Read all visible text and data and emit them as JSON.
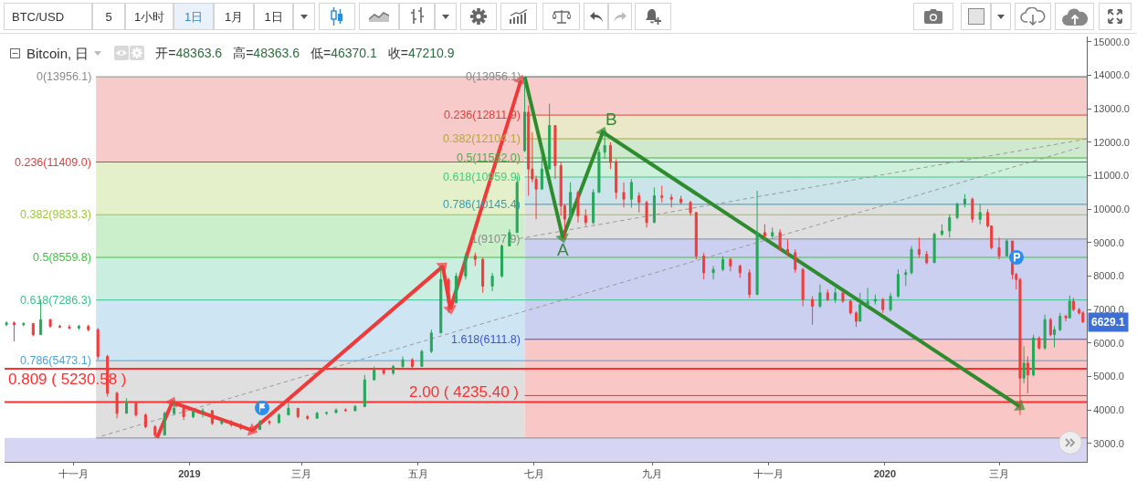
{
  "chart_data": {
    "type": "candlestick",
    "title": "Bitcoin, 日",
    "subtitle": "开=48363.6  高=48363.6  低=46370.1  收=47210.9",
    "x": [
      "2018-09-27",
      "2018-10-01",
      "2018-10-06",
      "2018-10-11",
      "2018-10-15",
      "2018-10-20",
      "2018-10-25",
      "2018-10-30",
      "2018-11-04",
      "2018-11-09",
      "2018-11-14",
      "2018-11-19",
      "2018-11-24",
      "2018-11-29",
      "2018-12-04",
      "2018-12-09",
      "2018-12-14",
      "2018-12-19",
      "2018-12-24",
      "2018-12-29",
      "2019-01-03",
      "2019-01-08",
      "2019-01-13",
      "2019-01-18",
      "2019-01-23",
      "2019-01-28",
      "2019-02-02",
      "2019-02-07",
      "2019-02-12",
      "2019-02-17",
      "2019-02-22",
      "2019-02-27",
      "2019-03-04",
      "2019-03-09",
      "2019-03-14",
      "2019-03-19",
      "2019-03-24",
      "2019-03-29",
      "2019-04-03",
      "2019-04-08",
      "2019-04-13",
      "2019-04-18",
      "2019-04-23",
      "2019-04-28",
      "2019-05-03",
      "2019-05-08",
      "2019-05-13",
      "2019-05-17",
      "2019-05-21",
      "2019-05-26",
      "2019-05-31",
      "2019-06-04",
      "2019-06-09",
      "2019-06-14",
      "2019-06-18",
      "2019-06-22",
      "2019-06-26",
      "2019-06-28",
      "2019-06-30",
      "2019-07-02",
      "2019-07-05",
      "2019-07-09",
      "2019-07-12",
      "2019-07-15",
      "2019-07-17",
      "2019-07-20",
      "2019-07-24",
      "2019-07-28",
      "2019-08-01",
      "2019-08-04",
      "2019-08-07",
      "2019-08-10",
      "2019-08-13",
      "2019-08-17",
      "2019-08-21",
      "2019-08-25",
      "2019-08-29",
      "2019-09-02",
      "2019-09-06",
      "2019-09-11",
      "2019-09-16",
      "2019-09-21",
      "2019-09-24",
      "2019-09-28",
      "2019-10-03",
      "2019-10-08",
      "2019-10-12",
      "2019-10-17",
      "2019-10-22",
      "2019-10-26",
      "2019-10-30",
      "2019-11-03",
      "2019-11-07",
      "2019-11-11",
      "2019-11-15",
      "2019-11-19",
      "2019-11-24",
      "2019-11-28",
      "2019-12-02",
      "2019-12-06",
      "2019-12-10",
      "2019-12-14",
      "2019-12-17",
      "2019-12-19",
      "2019-12-23",
      "2019-12-27",
      "2019-12-31",
      "2020-01-04",
      "2020-01-08",
      "2020-01-12",
      "2020-01-15",
      "2020-01-19",
      "2020-01-23",
      "2020-01-27",
      "2020-01-31",
      "2020-02-04",
      "2020-02-08",
      "2020-02-12",
      "2020-02-16",
      "2020-02-20",
      "2020-02-24",
      "2020-02-26",
      "2020-03-01",
      "2020-03-05",
      "2020-03-08",
      "2020-03-10",
      "2020-03-12",
      "2020-03-14",
      "2020-03-16",
      "2020-03-19",
      "2020-03-22",
      "2020-03-25",
      "2020-03-28",
      "2020-03-30",
      "2020-04-02",
      "2020-04-05",
      "2020-04-07",
      "2020-04-09",
      "2020-04-12",
      "2020-04-14"
    ],
    "ohlc": [
      [
        6550,
        6650,
        6500,
        6600
      ],
      [
        6600,
        6650,
        6050,
        6550
      ],
      [
        6550,
        6620,
        6500,
        6580
      ],
      [
        6580,
        6600,
        6200,
        6250
      ],
      [
        6250,
        7300,
        6250,
        6700
      ],
      [
        6700,
        6720,
        6450,
        6500
      ],
      [
        6500,
        6550,
        6450,
        6480
      ],
      [
        6480,
        6550,
        6400,
        6450
      ],
      [
        6450,
        6550,
        6400,
        6500
      ],
      [
        6500,
        6550,
        6350,
        6400
      ],
      [
        6400,
        6450,
        5500,
        5600
      ],
      [
        5600,
        5650,
        4400,
        4500
      ],
      [
        4500,
        4550,
        3750,
        3900
      ],
      [
        3900,
        4350,
        3900,
        4200
      ],
      [
        4200,
        4250,
        3800,
        3850
      ],
      [
        3850,
        3900,
        3450,
        3500
      ],
      [
        3500,
        3550,
        3165,
        3250
      ],
      [
        3250,
        3950,
        3250,
        3900
      ],
      [
        3900,
        4230,
        3850,
        4050
      ],
      [
        4050,
        4050,
        3700,
        3800
      ],
      [
        3800,
        4000,
        3750,
        3950
      ],
      [
        3950,
        4050,
        3780,
        3980
      ],
      [
        3980,
        4000,
        3550,
        3600
      ],
      [
        3600,
        3700,
        3550,
        3650
      ],
      [
        3650,
        3700,
        3500,
        3550
      ],
      [
        3550,
        3600,
        3400,
        3450
      ],
      [
        3450,
        3500,
        3390,
        3420
      ],
      [
        3420,
        3700,
        3400,
        3650
      ],
      [
        3650,
        3700,
        3550,
        3620
      ],
      [
        3620,
        3900,
        3600,
        3850
      ],
      [
        3850,
        4200,
        3850,
        4050
      ],
      [
        4050,
        4050,
        3750,
        3800
      ],
      [
        3800,
        3850,
        3700,
        3750
      ],
      [
        3750,
        3950,
        3750,
        3900
      ],
      [
        3900,
        3950,
        3850,
        3920
      ],
      [
        3920,
        4050,
        3900,
        4000
      ],
      [
        4000,
        4050,
        3950,
        3980
      ],
      [
        3980,
        4150,
        3950,
        4100
      ],
      [
        4100,
        5050,
        4100,
        4900
      ],
      [
        4900,
        5300,
        4900,
        5200
      ],
      [
        5200,
        5220,
        5050,
        5100
      ],
      [
        5100,
        5350,
        5050,
        5300
      ],
      [
        5300,
        5600,
        5250,
        5500
      ],
      [
        5500,
        5550,
        5200,
        5300
      ],
      [
        5300,
        5800,
        5300,
        5750
      ],
      [
        5750,
        6400,
        5700,
        6300
      ],
      [
        6300,
        8250,
        6300,
        7900
      ],
      [
        7900,
        7950,
        6900,
        7200
      ],
      [
        7200,
        8100,
        7200,
        8000
      ],
      [
        8000,
        8700,
        7900,
        8600
      ],
      [
        8600,
        8700,
        8300,
        8500
      ],
      [
        8500,
        8550,
        7500,
        7700
      ],
      [
        7700,
        8100,
        7550,
        8000
      ],
      [
        8000,
        8950,
        7950,
        8900
      ],
      [
        8900,
        9400,
        8900,
        9300
      ],
      [
        9300,
        11000,
        9300,
        10800
      ],
      [
        11750,
        13956.1,
        11700,
        12900
      ],
      [
        12900,
        13100,
        10400,
        11200
      ],
      [
        11200,
        12300,
        10800,
        10900
      ],
      [
        10900,
        11000,
        9700,
        10600
      ],
      [
        10600,
        11900,
        10600,
        11200
      ],
      [
        11200,
        13150,
        11200,
        12500
      ],
      [
        12500,
        12500,
        10900,
        11300
      ],
      [
        11300,
        11400,
        9800,
        10100
      ],
      [
        10100,
        10150,
        9107.9,
        9700
      ],
      [
        9700,
        10800,
        9700,
        10500
      ],
      [
        10500,
        10550,
        9600,
        9800
      ],
      [
        9800,
        10000,
        9500,
        9600
      ],
      [
        9600,
        10600,
        9550,
        10500
      ],
      [
        10500,
        11800,
        10500,
        11700
      ],
      [
        11700,
        12300,
        11500,
        11900
      ],
      [
        11900,
        12000,
        11200,
        11400
      ],
      [
        11400,
        11500,
        10300,
        10500
      ],
      [
        10500,
        10800,
        10050,
        10300
      ],
      [
        10300,
        10900,
        10050,
        10800
      ],
      [
        10400,
        10500,
        9900,
        10200
      ],
      [
        10200,
        10250,
        9450,
        9600
      ],
      [
        9600,
        10650,
        9600,
        10400
      ],
      [
        10400,
        10700,
        10200,
        10350
      ],
      [
        10350,
        10450,
        10050,
        10300
      ],
      [
        10300,
        10400,
        10150,
        10200
      ],
      [
        10200,
        10250,
        9800,
        9900
      ],
      [
        9900,
        9900,
        8500,
        8600
      ],
      [
        8600,
        8700,
        7900,
        8100
      ],
      [
        8100,
        8300,
        7900,
        8200
      ],
      [
        8200,
        8600,
        8150,
        8500
      ],
      [
        8500,
        8550,
        8150,
        8300
      ],
      [
        8300,
        8350,
        7950,
        8100
      ],
      [
        8100,
        8200,
        7350,
        7450
      ],
      [
        7450,
        10550,
        7450,
        9300
      ],
      [
        9300,
        9550,
        9050,
        9200
      ],
      [
        9200,
        9450,
        9100,
        9300
      ],
      [
        9300,
        9400,
        8750,
        8800
      ],
      [
        8800,
        9100,
        8600,
        8700
      ],
      [
        8700,
        8800,
        8100,
        8200
      ],
      [
        8200,
        8250,
        7100,
        7300
      ],
      [
        7300,
        7400,
        6550,
        7100
      ],
      [
        7100,
        7750,
        7050,
        7500
      ],
      [
        7500,
        7600,
        7250,
        7300
      ],
      [
        7300,
        7650,
        7200,
        7500
      ],
      [
        7500,
        7550,
        7200,
        7250
      ],
      [
        7250,
        7300,
        6850,
        6900
      ],
      [
        6900,
        6950,
        6480,
        6650
      ],
      [
        6650,
        7500,
        6650,
        7150
      ],
      [
        7150,
        7650,
        7100,
        7250
      ],
      [
        7250,
        7450,
        7150,
        7300
      ],
      [
        7300,
        7350,
        6900,
        7000
      ],
      [
        7000,
        7500,
        6950,
        7400
      ],
      [
        7400,
        8200,
        7350,
        8050
      ],
      [
        8050,
        8200,
        7700,
        8100
      ],
      [
        8100,
        8900,
        8050,
        8800
      ],
      [
        8800,
        9150,
        8550,
        8650
      ],
      [
        8650,
        8750,
        8350,
        8400
      ],
      [
        8400,
        9300,
        8400,
        9250
      ],
      [
        9250,
        9550,
        9200,
        9350
      ],
      [
        9350,
        9850,
        9150,
        9750
      ],
      [
        9750,
        10200,
        9700,
        10150
      ],
      [
        10150,
        10450,
        10050,
        10300
      ],
      [
        10300,
        10350,
        9600,
        9700
      ],
      [
        9700,
        10150,
        9550,
        9900
      ],
      [
        9900,
        10000,
        9450,
        9500
      ],
      [
        9500,
        9500,
        8800,
        8850
      ],
      [
        8850,
        9150,
        8500,
        8600
      ],
      [
        8600,
        9100,
        8600,
        9050
      ],
      [
        9050,
        9050,
        7900,
        8050
      ],
      [
        8050,
        8100,
        7600,
        7900
      ],
      [
        7900,
        7950,
        3850,
        4950
      ],
      [
        4950,
        5900,
        4800,
        5400
      ],
      [
        5400,
        5600,
        4500,
        5050
      ],
      [
        5050,
        6250,
        5000,
        6150
      ],
      [
        6150,
        6200,
        5800,
        5850
      ],
      [
        5850,
        6850,
        5800,
        6700
      ],
      [
        6700,
        6750,
        6200,
        6250
      ],
      [
        6250,
        6500,
        5870,
        6400
      ],
      [
        6400,
        6900,
        6350,
        6800
      ],
      [
        6800,
        6850,
        6650,
        6750
      ],
      [
        6750,
        7420,
        6750,
        7250
      ],
      [
        7250,
        7350,
        6950,
        7000
      ],
      [
        7000,
        7050,
        6850,
        6900
      ],
      [
        6900,
        6950,
        6600,
        6629.1
      ]
    ],
    "colors": [
      "#26a65b",
      "#f03c3c",
      "#26a65b",
      "#f03c3c",
      "#26a65b",
      "#f03c3c",
      "#f03c3c",
      "#f03c3c",
      "#26a65b",
      "#f03c3c",
      "#f03c3c",
      "#f03c3c",
      "#f03c3c",
      "#26a65b",
      "#f03c3c",
      "#f03c3c",
      "#f03c3c",
      "#26a65b",
      "#26a65b",
      "#f03c3c",
      "#26a65b",
      "#26a65b",
      "#f03c3c",
      "#26a65b",
      "#f03c3c",
      "#f03c3c",
      "#f03c3c",
      "#26a65b",
      "#f03c3c",
      "#26a65b",
      "#26a65b",
      "#f03c3c",
      "#f03c3c",
      "#26a65b",
      "#26a65b",
      "#26a65b",
      "#f03c3c",
      "#26a65b",
      "#26a65b",
      "#26a65b",
      "#f03c3c",
      "#26a65b",
      "#26a65b",
      "#f03c3c",
      "#26a65b",
      "#26a65b",
      "#26a65b",
      "#f03c3c",
      "#26a65b",
      "#26a65b",
      "#f03c3c",
      "#f03c3c",
      "#26a65b",
      "#26a65b",
      "#26a65b",
      "#26a65b",
      "#26a65b",
      "#f03c3c",
      "#f03c3c",
      "#f03c3c",
      "#26a65b",
      "#26a65b",
      "#f03c3c",
      "#f03c3c",
      "#f03c3c",
      "#26a65b",
      "#f03c3c",
      "#f03c3c",
      "#26a65b",
      "#26a65b",
      "#26a65b",
      "#f03c3c",
      "#f03c3c",
      "#f03c3c",
      "#26a65b",
      "#f03c3c",
      "#f03c3c",
      "#26a65b",
      "#f03c3c",
      "#f03c3c",
      "#f03c3c",
      "#f03c3c",
      "#f03c3c",
      "#f03c3c",
      "#26a65b",
      "#26a65b",
      "#f03c3c",
      "#f03c3c",
      "#f03c3c",
      "#26a65b",
      "#f03c3c",
      "#26a65b",
      "#f03c3c",
      "#f03c3c",
      "#f03c3c",
      "#f03c3c",
      "#f03c3c",
      "#26a65b",
      "#f03c3c",
      "#26a65b",
      "#f03c3c",
      "#f03c3c",
      "#f03c3c",
      "#26a65b",
      "#26a65b",
      "#26a65b",
      "#f03c3c",
      "#26a65b",
      "#26a65b",
      "#26a65b",
      "#26a65b",
      "#f03c3c",
      "#f03c3c",
      "#26a65b",
      "#26a65b",
      "#26a65b",
      "#26a65b",
      "#26a65b",
      "#f03c3c",
      "#26a65b",
      "#f03c3c",
      "#f03c3c",
      "#f03c3c",
      "#26a65b",
      "#f03c3c",
      "#f03c3c",
      "#f03c3c",
      "#26a65b",
      "#f03c3c",
      "#26a65b",
      "#f03c3c",
      "#26a65b",
      "#f03c3c",
      "#26a65b",
      "#26a65b",
      "#f03c3c",
      "#26a65b",
      "#f03c3c",
      "#f03c3c",
      "#f03c3c"
    ],
    "series": [
      {
        "type": "line",
        "name": "0(13956.1)",
        "color": "#8a8a8a",
        "x": [
          "2018-11-13",
          "2020-04-16"
        ],
        "values": [
          13956.1,
          13956.1
        ]
      },
      {
        "type": "line",
        "name": "0.236(11409.0)",
        "color": "#e0403c",
        "x": [
          "2018-11-13",
          "2019-06-26",
          "2020-04-16"
        ],
        "values": [
          11409.0,
          11409.0,
          11409.0
        ],
        "lower": [
          11409.0,
          11409.0,
          null
        ],
        "upper": [
          13956.1,
          13956.1,
          null
        ]
      },
      {
        "type": "line",
        "name": "0.382(9833.3)",
        "color": "#9cc93a",
        "x": [
          "2018-11-13",
          "2019-06-26",
          "2020-04-16"
        ],
        "values": [
          9833.3,
          9833.3,
          9833.3
        ],
        "lower": [
          9833.3,
          9833.3,
          null
        ],
        "upper": [
          11409.0,
          11409.0,
          null
        ]
      },
      {
        "type": "line",
        "name": "0.5(8559.8)",
        "color": "#3fc43f",
        "x": [
          "2018-11-13",
          "2019-06-26",
          "2020-04-16"
        ],
        "values": [
          8559.8,
          8559.8,
          8559.8
        ],
        "lower": [
          8559.8,
          8559.8,
          null
        ],
        "upper": [
          9833.3,
          9833.3,
          null
        ]
      },
      {
        "type": "line",
        "name": "0.618(7286.3)",
        "color": "#3cc290",
        "x": [
          "2018-11-13",
          "2019-06-26",
          "2020-04-16"
        ],
        "values": [
          7286.3,
          7286.3,
          7286.3
        ],
        "lower": [
          7286.3,
          7286.3,
          null
        ],
        "upper": [
          8559.8,
          8559.8,
          null
        ]
      },
      {
        "type": "line",
        "name": "0.786(5473.1)",
        "color": "#4aa3d8",
        "x": [
          "2018-11-13",
          "2019-06-26",
          "2020-04-16"
        ],
        "values": [
          5473.1,
          5473.1,
          5473.1
        ],
        "lower": [
          5473.1,
          5473.1,
          null
        ],
        "upper": [
          7286.3,
          7286.3,
          null
        ]
      },
      {
        "type": "line",
        "color": "#8a8a8a",
        "x": [
          "2018-11-13",
          "2019-06-26",
          "2020-04-16"
        ],
        "values": [
          3163.3,
          3163.3,
          3163.3
        ],
        "lower": [
          3163.3,
          3163.3,
          null
        ],
        "upper": [
          5473.1,
          5473.1,
          null
        ]
      },
      {
        "type": "line",
        "name": "0(13956.1)",
        "color": "#8a8a8a",
        "x": [
          "2019-06-26",
          "2020-04-16"
        ],
        "values": [
          13956.1,
          13956.1
        ]
      },
      {
        "type": "line",
        "name": "0.236(12811.9)",
        "color": "#e0403c",
        "x": [
          "2019-06-26",
          "2020-04-16"
        ],
        "values": [
          12811.9,
          12811.9
        ],
        "lower": [
          12811.9,
          12811.9
        ],
        "upper": [
          13956.1,
          13956.1
        ]
      },
      {
        "type": "line",
        "name": "0.382(12104.1)",
        "color": "#b5a83a",
        "x": [
          "2019-06-26",
          "2020-04-16"
        ],
        "values": [
          12104.1,
          12104.1
        ],
        "lower": [
          12104.1,
          12104.1
        ],
        "upper": [
          12811.9,
          12811.9
        ]
      },
      {
        "type": "line",
        "name": "0.5(11532.0)",
        "color": "#4fae4a",
        "x": [
          "2019-06-26",
          "2020-04-16"
        ],
        "values": [
          11532.0,
          11532.0
        ],
        "lower": [
          11532.0,
          11532.0
        ],
        "upper": [
          12104.1,
          12104.1
        ]
      },
      {
        "type": "line",
        "name": "0.618(10959.9)",
        "color": "#45cc7a",
        "x": [
          "2019-06-26",
          "2020-04-16"
        ],
        "values": [
          10959.9,
          10959.9
        ],
        "lower": [
          10959.9,
          10959.9
        ],
        "upper": [
          11532.0,
          11532.0
        ]
      },
      {
        "type": "line",
        "name": "0.786(10145.4)",
        "color": "#3a9cb2",
        "x": [
          "2019-06-26",
          "2020-04-16"
        ],
        "values": [
          10145.4,
          10145.4
        ],
        "lower": [
          10145.4,
          10145.4
        ],
        "upper": [
          10959.9,
          10959.9
        ]
      },
      {
        "type": "line",
        "name": "1(9107.9)",
        "color": "#8a8a8a",
        "x": [
          "2019-06-26",
          "2020-04-16"
        ],
        "values": [
          9107.9,
          9107.9
        ],
        "lower": [
          9107.9,
          9107.9
        ],
        "upper": [
          10145.4,
          10145.4
        ]
      },
      {
        "type": "line",
        "name": "1.618(6111.8)",
        "color": "#4052c8",
        "x": [
          "2019-06-26",
          "2020-04-16"
        ],
        "values": [
          6111.8,
          6111.8
        ],
        "lower": [
          6111.8,
          6111.8
        ],
        "upper": [
          9107.9,
          9107.9
        ]
      },
      {
        "type": "line",
        "color": "#ee3030",
        "x": [
          "2019-06-26",
          "2020-04-16"
        ],
        "values": [
          4430,
          4430
        ],
        "lower": [
          3163.3,
          3163.3
        ],
        "upper": [
          6111.8,
          6111.8
        ]
      },
      {
        "type": "line",
        "color": "#9a9a9a",
        "line_style": "dashed",
        "x": [
          "2018-11-16",
          "2020-04-12"
        ],
        "values": [
          3220,
          11840
        ]
      },
      {
        "type": "line",
        "color": "#9a9a9a",
        "line_style": "dashed",
        "x": [
          "2019-06-23",
          "2020-04-16"
        ],
        "values": [
          9120,
          12100
        ]
      },
      {
        "type": "line",
        "color": "#f03a3a",
        "marker": "triangle",
        "x": [
          "2018-12-15",
          "2018-12-23",
          "2019-02-03",
          "2019-05-14",
          "2019-05-18",
          "2019-06-24"
        ],
        "values": [
          3165,
          4230,
          3390,
          8290,
          7020,
          13850
        ]
      },
      {
        "type": "line",
        "color": "#2e8b2e",
        "marker": "triangle",
        "x": [
          "2019-06-26",
          "2019-07-16",
          "2019-08-06",
          "2020-03-12"
        ],
        "values": [
          13956.1,
          9150,
          12300,
          4100
        ]
      }
    ],
    "xlim": [
      "2018-09-26",
      "2020-04-16"
    ],
    "xticks": [
      {
        "value": "2018-11-01",
        "label": "十一月"
      },
      {
        "value": "2019-01-01",
        "label": "2019"
      },
      {
        "value": "2019-03-01",
        "label": "三月"
      },
      {
        "value": "2019-05-01",
        "label": "五月"
      },
      {
        "value": "2019-07-01",
        "label": "七月"
      },
      {
        "value": "2019-09-01",
        "label": "九月"
      },
      {
        "value": "2019-11-01",
        "label": "十一月"
      },
      {
        "value": "2020-01-01",
        "label": "2020"
      },
      {
        "value": "2020-03-01",
        "label": "三月"
      }
    ],
    "ylim": [
      2450,
      15160
    ],
    "yticks": [
      {
        "value": 3000,
        "label": "3000.0"
      },
      {
        "value": 4000,
        "label": "4000.0"
      },
      {
        "value": 5000,
        "label": "5000.0"
      },
      {
        "value": 6000,
        "label": "6000.0"
      },
      {
        "value": 7000,
        "label": "7000.0"
      },
      {
        "value": 8000,
        "label": "8000.0"
      },
      {
        "value": 9000,
        "label": "9000.0"
      },
      {
        "value": 10000,
        "label": "10000.0"
      },
      {
        "value": 11000,
        "label": "11000.0"
      },
      {
        "value": 12000,
        "label": "12000.0"
      },
      {
        "value": 13000,
        "label": "13000.0"
      },
      {
        "value": 14000,
        "label": "14000.0"
      },
      {
        "value": 15000,
        "label": "15000.0"
      }
    ],
    "ref_lines": [
      {
        "axis": "y",
        "value": 5230.58,
        "label": "0.809 ( 5230.58 )",
        "color": "#ff3030"
      },
      {
        "axis": "y",
        "value": 4235.4,
        "label": "2.00 ( 4235.40 )",
        "color": "#ff3030"
      }
    ],
    "bands": [
      {
        "axis": "y",
        "from": 2450,
        "to": 3163.3,
        "color": "#d6d6f4"
      }
    ],
    "annotations": [
      "BTC/USD",
      "5",
      "1小时",
      "1日",
      "1月",
      "1日",
      {
        "text": "A",
        "x": "2019-07-16",
        "y": 9150
      },
      {
        "text": "B",
        "x": "2019-08-06",
        "y": 12300
      },
      {
        "text": "6629.1",
        "y": 6629.1
      }
    ]
  }
}
